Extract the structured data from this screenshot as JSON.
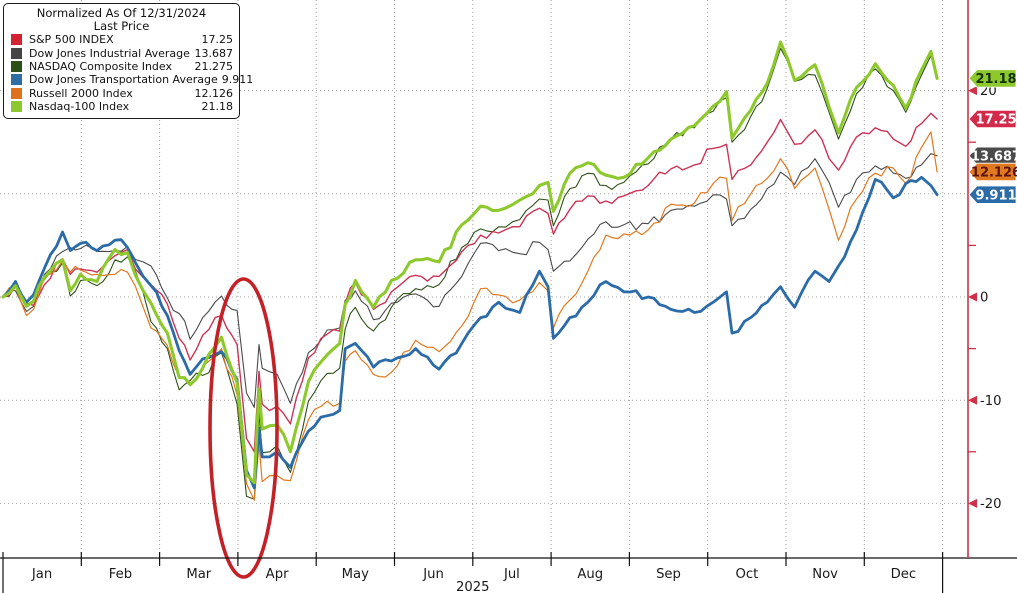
{
  "legend": {
    "title_line1": "Normalized As Of 12/31/2024",
    "title_line2": "Last Price",
    "items": [
      {
        "label": "S&P 500 INDEX",
        "value": "17.25",
        "color": "#d32332"
      },
      {
        "label": "Dow Jones Industrial Average",
        "value": "13.687",
        "color": "#454545"
      },
      {
        "label": "NASDAQ Composite Index",
        "value": "21.275",
        "color": "#2d5016"
      },
      {
        "label": "Dow Jones Transportation Average",
        "value": "9.911",
        "color": "#2e6da4"
      },
      {
        "label": "Russell 2000 Index",
        "value": "12.126",
        "color": "#e0711c"
      },
      {
        "label": "Nasdaq-100 Index",
        "value": "21.18",
        "color": "#8dc92c"
      }
    ]
  },
  "price_tags": [
    {
      "text": "21.18",
      "v": 21.18,
      "bg": "#8dc92c",
      "fg": "#12300a"
    },
    {
      "text": "17.25",
      "v": 17.25,
      "bg": "#d3294a",
      "fg": "#ffffff"
    },
    {
      "text": "13.687",
      "v": 13.687,
      "bg": "#4a4a4a",
      "fg": "#ffffff"
    },
    {
      "text": "12.126",
      "v": 12.126,
      "bg": "#e0791f",
      "fg": "#5c1212"
    },
    {
      "text": "9.911",
      "v": 9.911,
      "bg": "#2b6ca8",
      "fg": "#ffffff"
    }
  ],
  "annotation": {
    "shape": "ellipse",
    "meaning": "circle around April sell-off dip",
    "color": "#c42127"
  },
  "chart_data": {
    "type": "line",
    "title": "Normalized As Of 12/31/2024 - Last Price",
    "x_unit": "months of 2025 (0 = Jan 1)",
    "y_unit": "percent change since 12/31/2024",
    "ylim": [
      -24,
      28
    ],
    "grid_y": [
      20,
      10,
      0,
      -10,
      -20
    ],
    "y_labels": [
      {
        "v": 20,
        "t": "20"
      },
      {
        "v": 0,
        "t": "0"
      },
      {
        "v": -10,
        "t": "-10"
      },
      {
        "v": -20,
        "t": "-20"
      }
    ],
    "y_minor": [
      15,
      5,
      -5,
      -15
    ],
    "x_tick_labels": [
      "Jan",
      "Feb",
      "Mar",
      "Apr",
      "May",
      "Jun",
      "Jul",
      "Aug",
      "Sep",
      "Oct",
      "Nov",
      "Dec"
    ],
    "year_label": "2025",
    "colors": {
      "axis": "#cf3148",
      "grid": "#a3a3a3",
      "tick_text": "#1a1a1a",
      "baseline": "#111111"
    },
    "x": [
      0.0,
      0.16,
      0.3,
      0.39,
      0.53,
      0.76,
      0.86,
      0.99,
      1.2,
      1.43,
      1.59,
      1.79,
      1.89,
      2.1,
      2.25,
      2.39,
      2.55,
      2.79,
      2.99,
      3.11,
      3.21,
      3.27,
      3.31,
      3.5,
      3.67,
      3.9,
      4.14,
      4.3,
      4.37,
      4.5,
      4.73,
      4.96,
      5.27,
      5.57,
      5.86,
      6.1,
      6.33,
      6.6,
      6.85,
      6.96,
      7.03,
      7.24,
      7.47,
      7.7,
      7.93,
      8.24,
      8.53,
      8.83,
      9.07,
      9.24,
      9.31,
      9.55,
      9.76,
      9.93,
      10.11,
      10.37,
      10.55,
      10.67,
      10.9,
      11.14,
      11.37,
      11.53,
      11.73,
      11.85,
      11.93
    ],
    "series": [
      {
        "id": "spx",
        "name": "S&P 500 INDEX",
        "color": "#cc3355",
        "width": 1.4,
        "last": 17.25,
        "values": [
          0,
          1.0,
          -0.6,
          -0.8,
          1.2,
          3.7,
          2.2,
          2.7,
          2.4,
          4.0,
          4.6,
          1.9,
          1.2,
          -0.7,
          -4.0,
          -6.1,
          -3.7,
          -1.8,
          -4.6,
          -13.7,
          -15.0,
          -7.2,
          -10.4,
          -10.6,
          -12.3,
          -5.9,
          -3.6,
          -3.3,
          -0.6,
          1.4,
          -1.2,
          0.5,
          2.1,
          2.0,
          4.4,
          6.0,
          6.2,
          6.8,
          8.6,
          8.1,
          6.1,
          8.5,
          9.8,
          9.3,
          9.8,
          10.8,
          12.4,
          12.8,
          14.4,
          14.8,
          11.4,
          12.8,
          15.0,
          17.2,
          14.8,
          16.2,
          13.4,
          12.3,
          15.5,
          16.4,
          15.3,
          14.6,
          16.8,
          17.8,
          17.25
        ]
      },
      {
        "id": "indu",
        "name": "Dow Jones Industrial Average",
        "color": "#4a4a4a",
        "width": 1.1,
        "last": 13.687,
        "values": [
          0,
          0.6,
          -1.4,
          -0.9,
          2.2,
          4.4,
          4.8,
          4.7,
          4.4,
          4.5,
          4.9,
          3.4,
          3.0,
          -0.1,
          -1.6,
          -4.1,
          -2.0,
          0.1,
          -1.3,
          -9.3,
          -10.7,
          -4.6,
          -6.9,
          -7.5,
          -10.3,
          -5.4,
          -3.2,
          -3.0,
          -0.3,
          0.6,
          -2.2,
          -0.6,
          0.3,
          -0.9,
          2.0,
          5.2,
          4.5,
          4.2,
          5.3,
          4.6,
          2.5,
          3.5,
          5.6,
          7.3,
          7.0,
          7.1,
          8.4,
          8.8,
          9.9,
          9.5,
          6.9,
          8.5,
          10.5,
          12.1,
          10.9,
          13.4,
          11.1,
          8.7,
          11.4,
          12.7,
          12.0,
          11.5,
          12.8,
          13.9,
          13.687
        ]
      },
      {
        "id": "ccmp",
        "name": "NASDAQ Composite Index",
        "color": "#2d5016",
        "width": 1.1,
        "last": 21.275,
        "values": [
          0,
          1.2,
          -1.0,
          -0.5,
          1.7,
          3.3,
          0.1,
          1.6,
          1.1,
          3.6,
          3.9,
          0.4,
          -2.4,
          -5.0,
          -9.0,
          -8.1,
          -7.6,
          -5.4,
          -10.4,
          -19.3,
          -19.6,
          -11.3,
          -15.1,
          -14.4,
          -17.0,
          -10.1,
          -7.4,
          -6.9,
          -3.1,
          -1.0,
          -3.3,
          -1.0,
          0.8,
          1.2,
          4.8,
          6.6,
          6.8,
          7.5,
          9.5,
          9.4,
          6.9,
          10.5,
          12.0,
          10.8,
          11.1,
          12.9,
          15.3,
          16.4,
          18.0,
          19.3,
          15.0,
          17.5,
          20.2,
          24.1,
          20.9,
          21.5,
          17.9,
          15.3,
          19.7,
          22.1,
          20.0,
          17.9,
          21.5,
          23.4,
          21.275
        ]
      },
      {
        "id": "tran",
        "name": "Dow Jones Transportation Average",
        "color": "#2b6ca8",
        "width": 2.8,
        "last": 9.911,
        "values": [
          0,
          1.5,
          -0.5,
          0.2,
          2.8,
          6.3,
          4.5,
          5.2,
          4.5,
          5.5,
          4.8,
          2.0,
          1.1,
          -1.8,
          -5.2,
          -7.5,
          -6.0,
          -5.3,
          -8.0,
          -16.8,
          -18.5,
          -12.7,
          -15.5,
          -15.0,
          -16.5,
          -13.0,
          -11.5,
          -11.0,
          -5.0,
          -4.5,
          -6.8,
          -6.2,
          -5.0,
          -7.0,
          -4.5,
          -2.0,
          -0.5,
          -1.5,
          2.5,
          1.0,
          -4.0,
          -2.0,
          -0.5,
          1.5,
          0.5,
          0.0,
          -1.2,
          -1.5,
          -0.5,
          0.5,
          -3.5,
          -2.0,
          -0.5,
          1.0,
          -1.0,
          2.5,
          1.5,
          3.0,
          6.5,
          11.4,
          9.6,
          11.0,
          11.6,
          10.8,
          9.911
        ]
      },
      {
        "id": "rty",
        "name": "Russell 2000 Index",
        "color": "#e0791f",
        "width": 1.2,
        "last": 12.126,
        "values": [
          0,
          1.0,
          -1.8,
          -1.2,
          2.0,
          3.5,
          2.4,
          2.6,
          2.2,
          2.2,
          2.4,
          -1.0,
          -3.0,
          -4.7,
          -7.8,
          -8.3,
          -6.7,
          -5.0,
          -9.5,
          -18.1,
          -19.7,
          -14.2,
          -17.9,
          -17.3,
          -17.8,
          -11.9,
          -10.1,
          -10.3,
          -6.2,
          -5.2,
          -7.5,
          -7.3,
          -4.2,
          -5.3,
          -2.8,
          0.8,
          0.2,
          -0.3,
          1.4,
          0.6,
          -3.0,
          -0.3,
          2.5,
          6.0,
          6.1,
          6.5,
          9.0,
          9.1,
          11.0,
          11.5,
          7.4,
          10.0,
          11.5,
          13.4,
          10.5,
          12.5,
          8.5,
          5.5,
          9.5,
          12.0,
          12.5,
          11.0,
          14.5,
          16.0,
          12.126
        ]
      },
      {
        "id": "ndx",
        "name": "Nasdaq-100 Index",
        "color": "#8dc92c",
        "width": 3.1,
        "last": 21.18,
        "values": [
          0,
          1.1,
          -0.9,
          -0.4,
          1.9,
          3.6,
          0.6,
          2.2,
          1.5,
          4.6,
          4.3,
          0.6,
          -0.6,
          -3.5,
          -7.8,
          -8.5,
          -6.9,
          -3.9,
          -8.3,
          -17.2,
          -18.0,
          -8.9,
          -12.8,
          -12.4,
          -15.0,
          -8.2,
          -5.6,
          -4.5,
          -0.7,
          1.6,
          -1.0,
          1.6,
          3.6,
          3.4,
          7.0,
          8.8,
          8.4,
          9.4,
          10.8,
          11.1,
          8.3,
          12.0,
          13.0,
          11.8,
          11.6,
          13.5,
          15.3,
          16.6,
          18.5,
          19.9,
          15.4,
          18.1,
          20.7,
          24.7,
          21.0,
          22.5,
          18.4,
          15.9,
          20.3,
          22.6,
          20.5,
          18.3,
          22.0,
          23.8,
          21.18
        ]
      }
    ]
  }
}
